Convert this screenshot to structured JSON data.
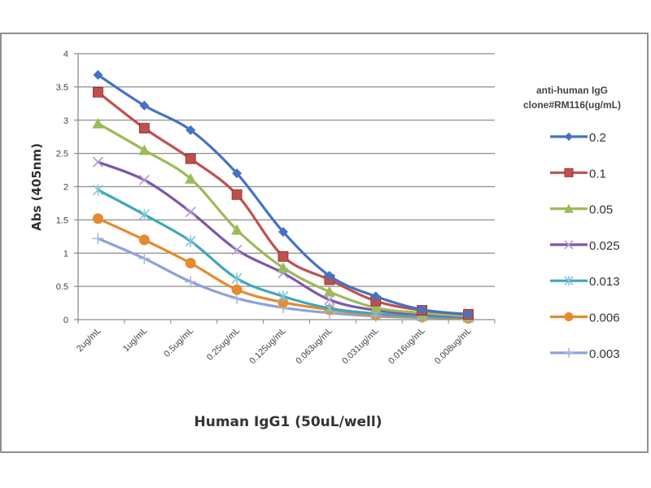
{
  "chart_data": {
    "type": "line",
    "title": "",
    "xlabel": "Human IgG1 (50uL/well)",
    "ylabel": "Abs (405nm)",
    "ylim": [
      0,
      4
    ],
    "yticks": [
      "0",
      "0.5",
      "1",
      "1.5",
      "2",
      "2.5",
      "3",
      "3.5",
      "4"
    ],
    "ytick_values": [
      0,
      0.5,
      1,
      1.5,
      2,
      2.5,
      3,
      3.5,
      4
    ],
    "grid": "horizontal",
    "legend_position": "right",
    "legend_title": [
      "anti-human IgG",
      "clone#RM116(ug/mL)"
    ],
    "categories": [
      "2ug/mL",
      "1ug/mL",
      "0.5ug/mL",
      "0.25ug/mL",
      "0.125ug/mL",
      "0.063ug/mL",
      "0.031ug/mL",
      "0.016ug/mL",
      "0.008ug/mL"
    ],
    "series": [
      {
        "name": "0.2",
        "color": "#4472C4",
        "marker": "diamond",
        "values": [
          3.68,
          3.22,
          2.85,
          2.2,
          1.32,
          0.66,
          0.35,
          0.15,
          0.08
        ]
      },
      {
        "name": "0.1",
        "color": "#C0504D",
        "marker": "square",
        "values": [
          3.42,
          2.88,
          2.42,
          1.88,
          0.95,
          0.6,
          0.28,
          0.14,
          0.08
        ]
      },
      {
        "name": "0.05",
        "color": "#9BBB59",
        "marker": "triangle",
        "values": [
          2.95,
          2.55,
          2.12,
          1.35,
          0.78,
          0.42,
          0.18,
          0.1,
          0.05
        ]
      },
      {
        "name": "0.025",
        "color": "#7E57A8",
        "marker": "x",
        "values": [
          2.37,
          2.1,
          1.62,
          1.05,
          0.7,
          0.3,
          0.14,
          0.08,
          0.04
        ]
      },
      {
        "name": "0.013",
        "color": "#3FA6BE",
        "marker": "star",
        "values": [
          1.95,
          1.58,
          1.18,
          0.62,
          0.35,
          0.17,
          0.09,
          0.05,
          0.03
        ]
      },
      {
        "name": "0.006",
        "color": "#E58A2E",
        "marker": "circle",
        "values": [
          1.52,
          1.2,
          0.85,
          0.45,
          0.26,
          0.15,
          0.07,
          0.04,
          0.02
        ]
      },
      {
        "name": "0.003",
        "color": "#8EA2D6",
        "marker": "plus",
        "values": [
          1.22,
          0.92,
          0.57,
          0.32,
          0.18,
          0.1,
          0.05,
          0.03,
          0.02
        ]
      }
    ]
  }
}
